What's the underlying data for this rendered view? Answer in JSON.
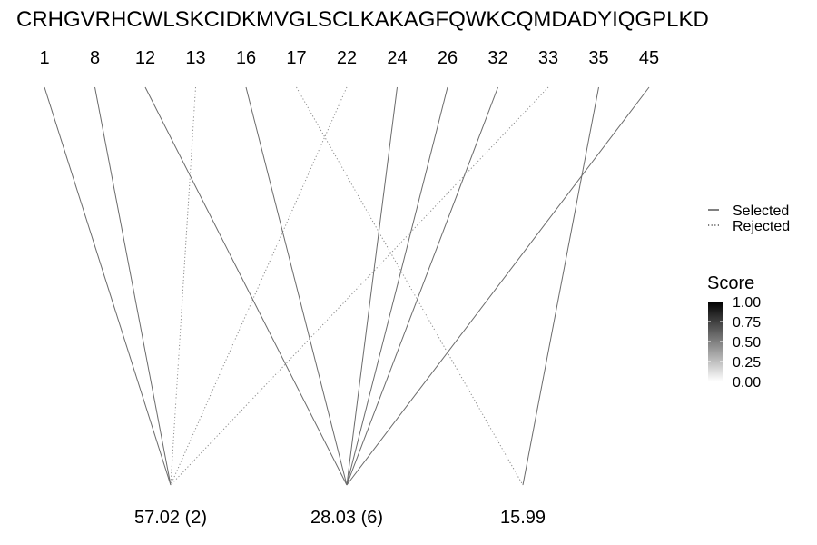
{
  "sequence": "CRHGVRHCWLSKCIDKMVGLSCLKAKAGFQWKCQMDADYIQGPLKD",
  "positions": [
    "1",
    "8",
    "12",
    "13",
    "16",
    "17",
    "22",
    "24",
    "26",
    "32",
    "33",
    "35",
    "45"
  ],
  "masses": [
    "57.02 (2)",
    "28.03 (6)",
    "15.99"
  ],
  "links": [
    {
      "from": "1",
      "to": "57.02 (2)",
      "status": "Selected"
    },
    {
      "from": "8",
      "to": "57.02 (2)",
      "status": "Selected"
    },
    {
      "from": "13",
      "to": "57.02 (2)",
      "status": "Rejected"
    },
    {
      "from": "22",
      "to": "57.02 (2)",
      "status": "Rejected"
    },
    {
      "from": "33",
      "to": "57.02 (2)",
      "status": "Rejected"
    },
    {
      "from": "12",
      "to": "28.03 (6)",
      "status": "Selected"
    },
    {
      "from": "16",
      "to": "28.03 (6)",
      "status": "Selected"
    },
    {
      "from": "24",
      "to": "28.03 (6)",
      "status": "Selected"
    },
    {
      "from": "26",
      "to": "28.03 (6)",
      "status": "Selected"
    },
    {
      "from": "32",
      "to": "28.03 (6)",
      "status": "Selected"
    },
    {
      "from": "45",
      "to": "28.03 (6)",
      "status": "Selected"
    },
    {
      "from": "17",
      "to": "15.99",
      "status": "Rejected"
    },
    {
      "from": "35",
      "to": "15.99",
      "status": "Selected"
    }
  ],
  "legend": {
    "selected_label": "Selected",
    "rejected_label": "Rejected"
  },
  "score": {
    "title": "Score",
    "ticks": [
      "1.00",
      "0.75",
      "0.50",
      "0.25",
      "0.00"
    ],
    "colors": {
      "high": "#000000",
      "low": "#ffffff"
    }
  }
}
